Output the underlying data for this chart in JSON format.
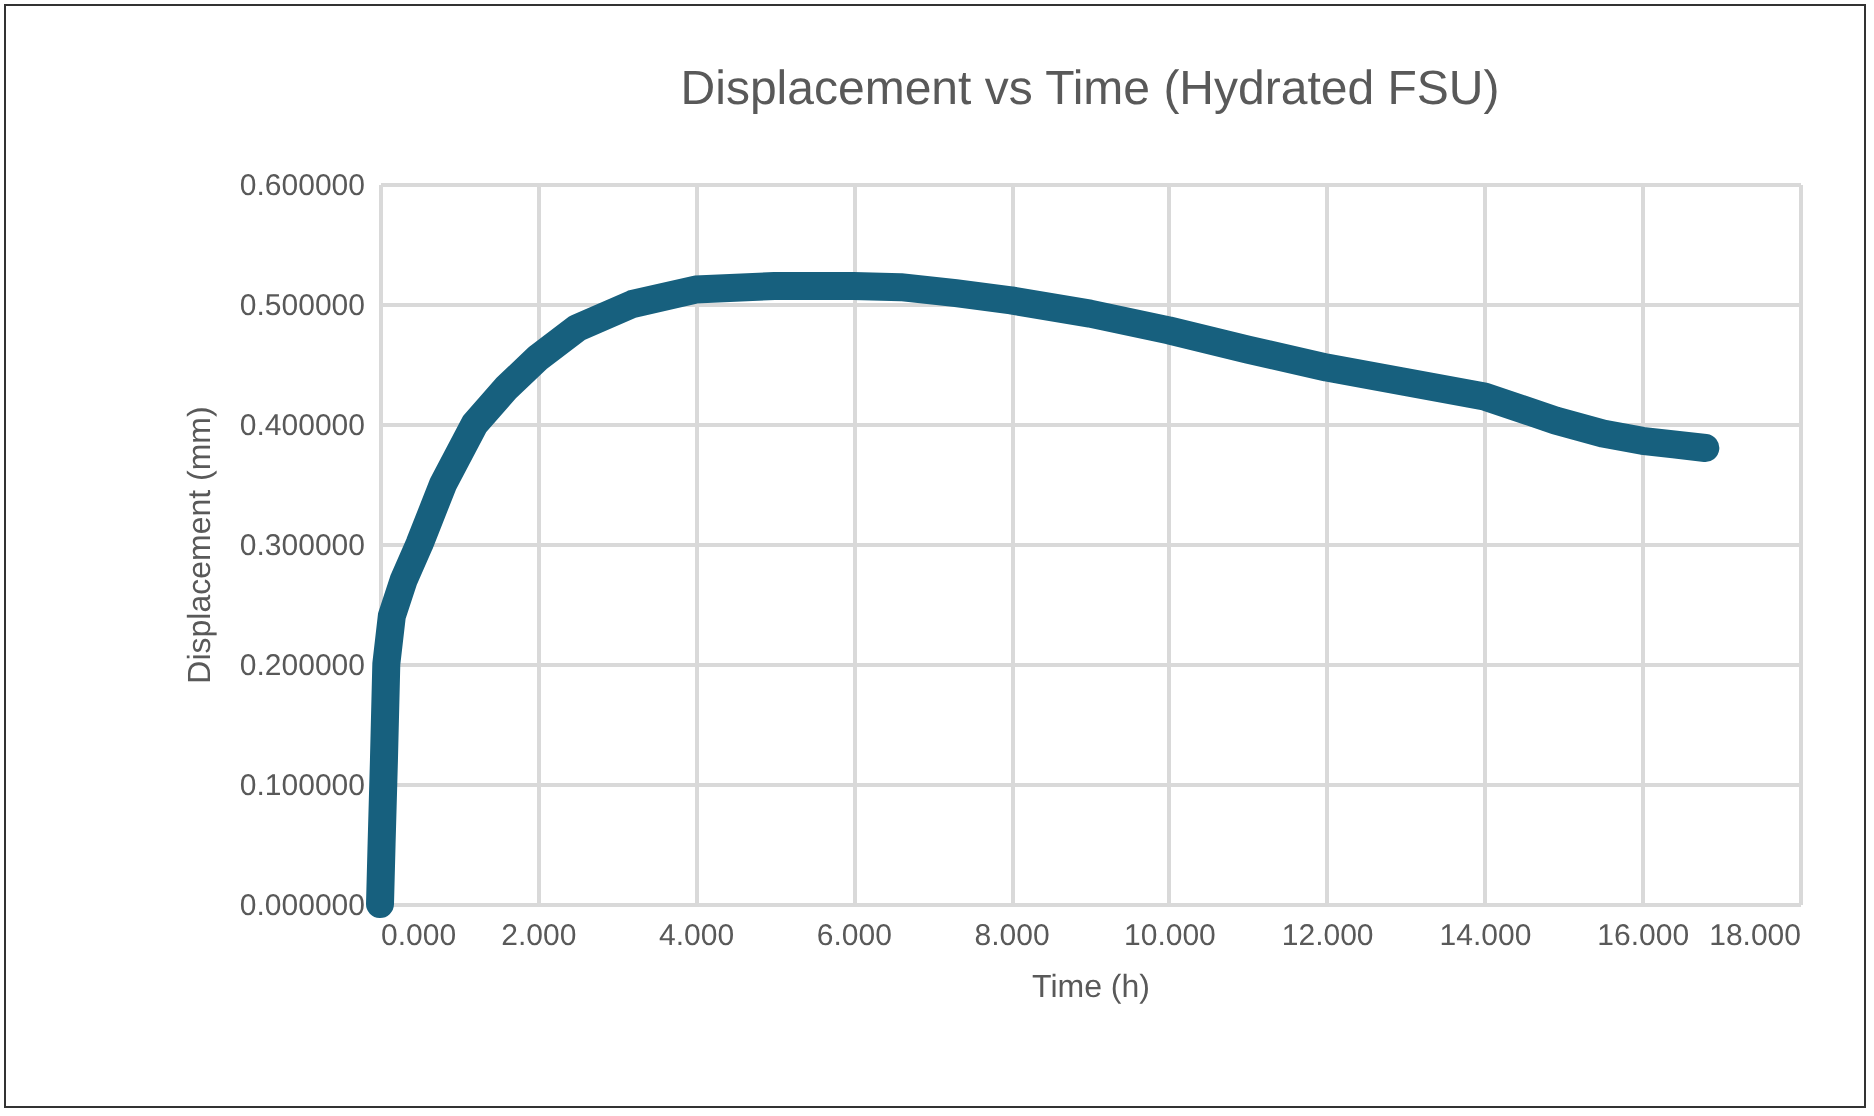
{
  "chart_data": {
    "type": "line",
    "title": "Displacement vs Time (Hydrated FSU)",
    "xlabel": "Time (h)",
    "ylabel": "Displacement (mm)",
    "x": [
      0,
      0.02,
      0.05,
      0.08,
      0.15,
      0.3,
      0.5,
      0.8,
      1.2,
      1.6,
      2.0,
      2.5,
      3.2,
      4.0,
      5.0,
      6.0,
      6.6,
      7.3,
      8.0,
      9.0,
      10.0,
      11.0,
      12.0,
      13.0,
      14.0,
      14.9,
      15.5,
      16.0,
      16.4,
      16.8
    ],
    "series": [
      {
        "color": "#17607e",
        "values": [
          0,
          0.05,
          0.12,
          0.2,
          0.24,
          0.27,
          0.3,
          0.35,
          0.4,
          0.43,
          0.455,
          0.48,
          0.5,
          0.512,
          0.515,
          0.515,
          0.514,
          0.509,
          0.503,
          0.492,
          0.478,
          0.462,
          0.447,
          0.435,
          0.423,
          0.403,
          0.392,
          0.386,
          0.383,
          0.38
        ]
      }
    ],
    "xlim": [
      0,
      18
    ],
    "ylim": [
      0,
      0.6
    ],
    "xticks": [
      {
        "value": 0,
        "label": "0.000"
      },
      {
        "value": 2,
        "label": "2.000"
      },
      {
        "value": 4,
        "label": "4.000"
      },
      {
        "value": 6,
        "label": "6.000"
      },
      {
        "value": 8,
        "label": "8.000"
      },
      {
        "value": 10,
        "label": "10.000"
      },
      {
        "value": 12,
        "label": "12.000"
      },
      {
        "value": 14,
        "label": "14.000"
      },
      {
        "value": 16,
        "label": "16.000"
      },
      {
        "value": 18,
        "label": "18.000"
      }
    ],
    "yticks": [
      {
        "value": 0,
        "label": "0.000000"
      },
      {
        "value": 0.1,
        "label": "0.100000"
      },
      {
        "value": 0.2,
        "label": "0.200000"
      },
      {
        "value": 0.3,
        "label": "0.300000"
      },
      {
        "value": 0.4,
        "label": "0.400000"
      },
      {
        "value": 0.5,
        "label": "0.500000"
      },
      {
        "value": 0.6,
        "label": "0.600000"
      }
    ],
    "grid": true,
    "line_style": "solid"
  }
}
